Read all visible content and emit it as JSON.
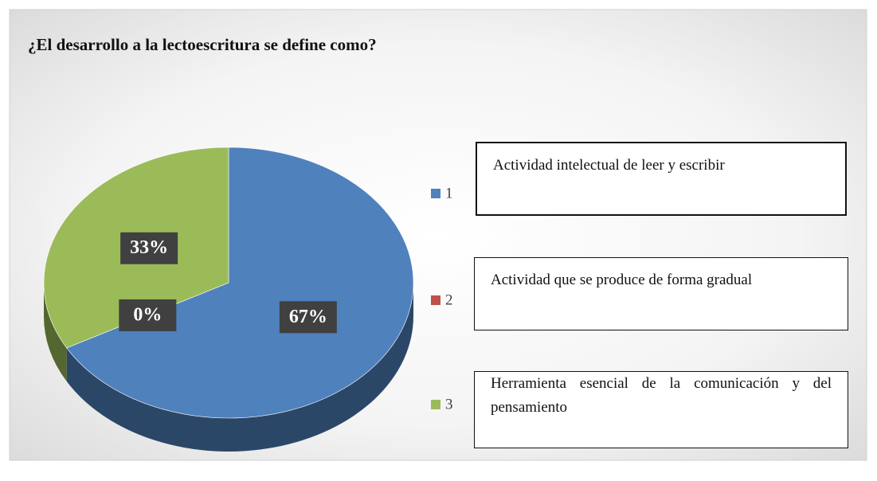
{
  "chart_data": {
    "type": "pie",
    "title": "¿El desarrollo a la lectoescritura se define como?",
    "categories": [
      "1",
      "2",
      "3"
    ],
    "values": [
      67,
      0,
      33
    ],
    "value_labels": [
      "67%",
      "0%",
      "33%"
    ],
    "colors": [
      "#4f81bd",
      "#c0504d",
      "#9bbb59"
    ],
    "descriptions": [
      "Actividad intelectual de leer y escribir",
      "Actividad que se produce de forma gradual",
      "Herramienta esencial de la comunicación y del pensamiento"
    ],
    "legend": "right"
  }
}
